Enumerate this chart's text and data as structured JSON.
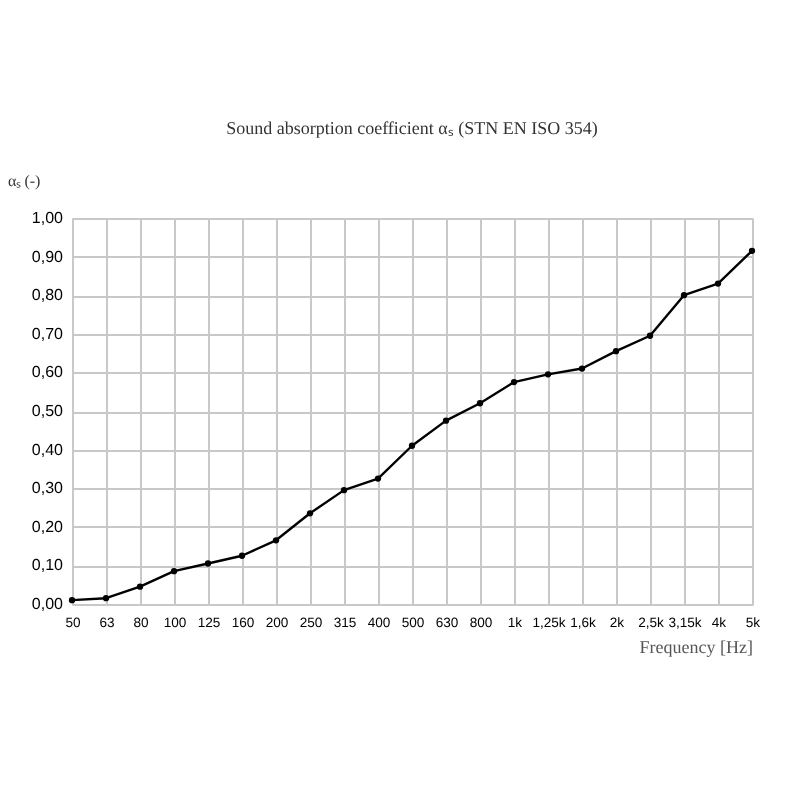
{
  "chart_data": {
    "type": "line",
    "title": "Sound absorption coefficient αₛ (STN EN ISO 354)",
    "ylabel": "αₛ (-)",
    "xlabel": "Frequency [Hz]",
    "categories": [
      "50",
      "63",
      "80",
      "100",
      "125",
      "160",
      "200",
      "250",
      "315",
      "400",
      "500",
      "630",
      "800",
      "1k",
      "1,25k",
      "1,6k",
      "2k",
      "2,5k",
      "3,15k",
      "4k",
      "5k"
    ],
    "series": [
      {
        "color": "#000000",
        "values": [
          0.01,
          0.015,
          0.045,
          0.085,
          0.105,
          0.125,
          0.165,
          0.235,
          0.295,
          0.325,
          0.41,
          0.475,
          0.52,
          0.575,
          0.595,
          0.61,
          0.655,
          0.695,
          0.8,
          0.83,
          0.915
        ]
      }
    ],
    "ylim": [
      0,
      1
    ],
    "yticks": [
      {
        "value": 0,
        "label": "0,00"
      },
      {
        "value": 0.1,
        "label": "0,10"
      },
      {
        "value": 0.2,
        "label": "0,20"
      },
      {
        "value": 0.3,
        "label": "0,30"
      },
      {
        "value": 0.4,
        "label": "0,40"
      },
      {
        "value": 0.5,
        "label": "0,50"
      },
      {
        "value": 0.6,
        "label": "0,60"
      },
      {
        "value": 0.7,
        "label": "0,70"
      },
      {
        "value": 0.8,
        "label": "0,80"
      },
      {
        "value": 0.9,
        "label": "0,90"
      },
      {
        "value": 1,
        "label": "1,00"
      }
    ],
    "grid": true,
    "legend": false,
    "marker": "circle",
    "line_style": "solid"
  }
}
